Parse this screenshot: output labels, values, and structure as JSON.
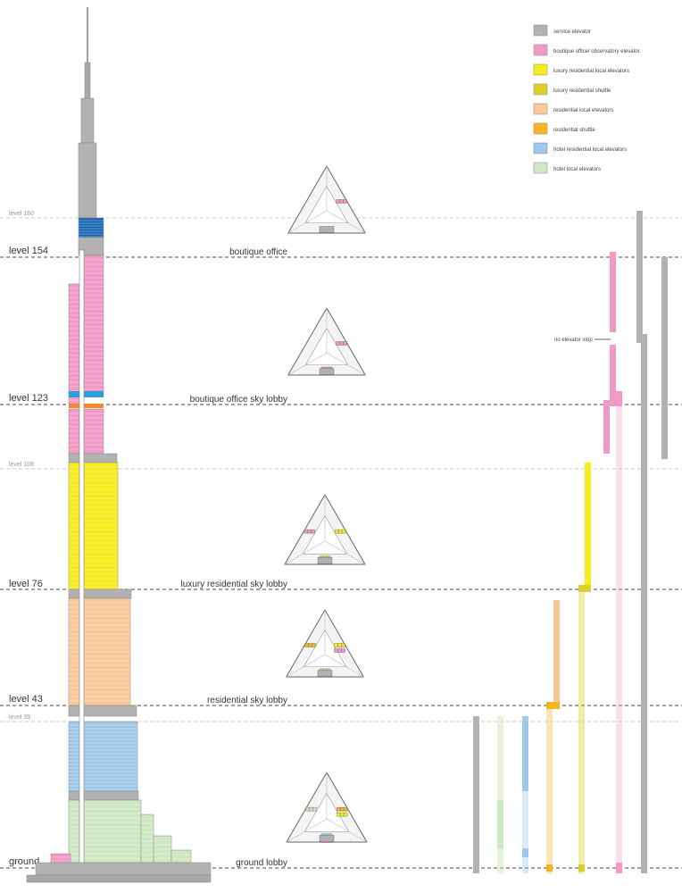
{
  "legend": [
    {
      "key": "service",
      "label": "service elevator",
      "color": "#b2b2b2"
    },
    {
      "key": "office",
      "label": "boutique office/ observatory elevator",
      "color": "#f29ac7"
    },
    {
      "key": "lux_local",
      "label": "luxury residential local elevators",
      "color": "#f7ec1f"
    },
    {
      "key": "lux_shuttle",
      "label": "luxury residential shuttle",
      "color": "#d9d12a"
    },
    {
      "key": "res_local",
      "label": "residential local elevators",
      "color": "#f9c99a"
    },
    {
      "key": "res_shuttle",
      "label": "residential shuttle",
      "color": "#f5b520"
    },
    {
      "key": "hotel_res",
      "label": "hotel residential local elevators",
      "color": "#9fc8ea"
    },
    {
      "key": "hotel_local",
      "label": "hotel local elevators",
      "color": "#cfe8c3"
    }
  ],
  "levels_major": [
    {
      "id": "154",
      "label": "level 154",
      "lobby": "boutique office"
    },
    {
      "id": "123",
      "label": "level 123",
      "lobby": "boutique office sky lobby"
    },
    {
      "id": "76",
      "label": "level 76",
      "lobby": "luxury residential sky lobby"
    },
    {
      "id": "43",
      "label": "level 43",
      "lobby": "residential sky lobby"
    },
    {
      "id": "ground",
      "label": "ground",
      "lobby": "ground lobby"
    }
  ],
  "levels_minor": [
    {
      "id": "160",
      "label": "level 160"
    },
    {
      "id": "108",
      "label": "level 108"
    },
    {
      "id": "39",
      "label": "level 39"
    }
  ],
  "note": "no elevator stop",
  "colors": {
    "service": "#b2b2b2",
    "office": "#f29ac7",
    "lux_local": "#f7ec1f",
    "lux_shuttle": "#d9d12a",
    "res_local": "#f9c99a",
    "res_shuttle": "#f5b520",
    "hotel_res": "#9fc8ea",
    "hotel_local": "#cfe8c3",
    "top_blue": "#1a66b3",
    "band_blue": "#2aa0dc",
    "band_orange": "#f08a2c"
  }
}
